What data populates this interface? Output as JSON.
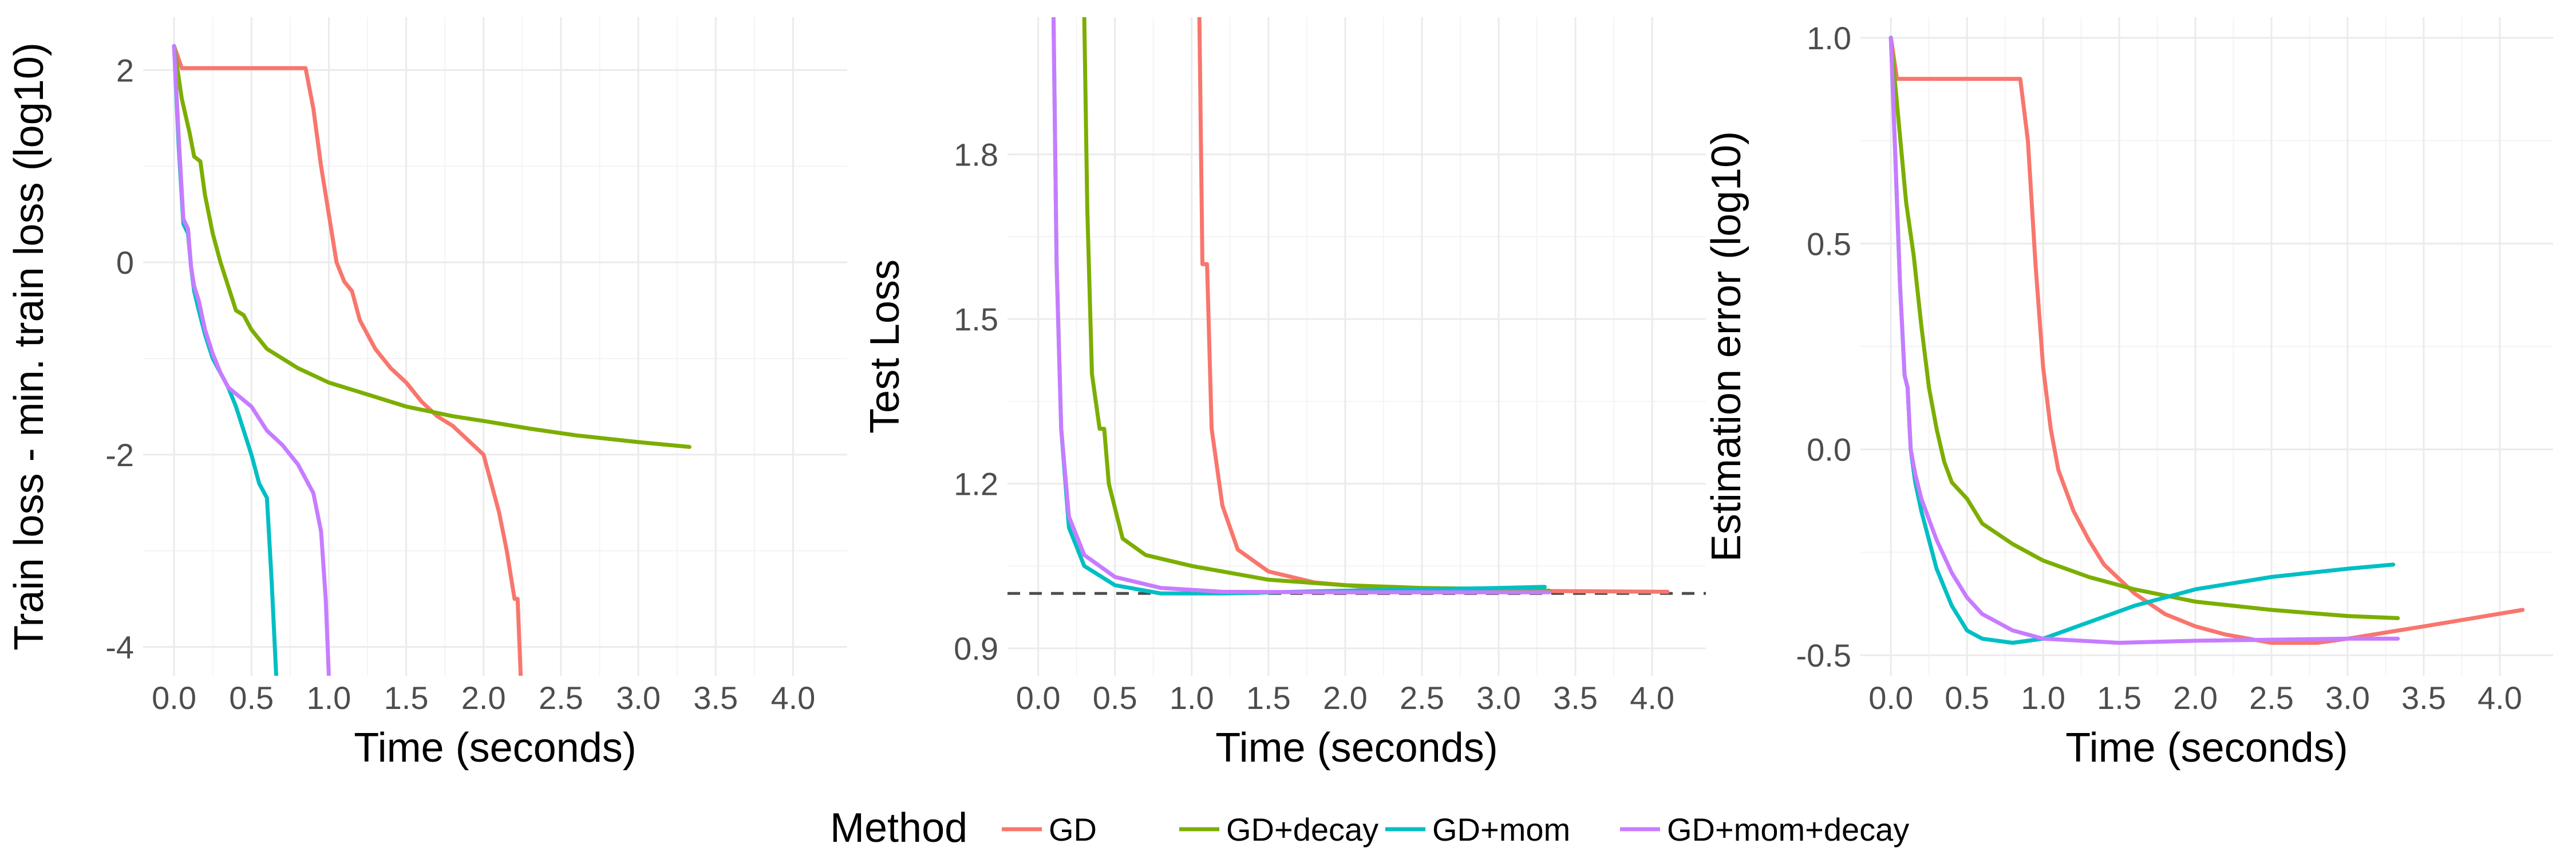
{
  "colors": {
    "GD": "#F8766D",
    "GD+decay": "#7CAE00",
    "GD+mom": "#00BFC4",
    "GD+mom+decay": "#C77CFF"
  },
  "legend": {
    "title": "Method",
    "entries": [
      "GD",
      "GD+decay",
      "GD+mom",
      "GD+mom+decay"
    ]
  },
  "chart_data": [
    {
      "type": "line",
      "xlabel": "Time (seconds)",
      "ylabel": "Train loss - min. train loss (log10)",
      "xlim": [
        -0.2,
        4.35
      ],
      "ylim": [
        -4.3,
        2.55
      ],
      "x_ticks": [
        0.0,
        0.5,
        1.0,
        1.5,
        2.0,
        2.5,
        3.0,
        3.5,
        4.0
      ],
      "x_tick_labels": [
        "0.0",
        "0.5",
        "1.0",
        "1.5",
        "2.0",
        "2.5",
        "3.0",
        "3.5",
        "4.0"
      ],
      "y_ticks": [
        -4,
        -2,
        0,
        2
      ],
      "y_tick_labels": [
        "-4",
        "-2",
        "0",
        "2"
      ],
      "series": [
        {
          "name": "GD",
          "points": [
            [
              0.0,
              2.25
            ],
            [
              0.05,
              2.02
            ],
            [
              0.85,
              2.02
            ],
            [
              0.9,
              1.6
            ],
            [
              0.95,
              1.0
            ],
            [
              1.0,
              0.5
            ],
            [
              1.05,
              0.0
            ],
            [
              1.1,
              -0.2
            ],
            [
              1.15,
              -0.3
            ],
            [
              1.2,
              -0.6
            ],
            [
              1.3,
              -0.9
            ],
            [
              1.4,
              -1.1
            ],
            [
              1.5,
              -1.25
            ],
            [
              1.6,
              -1.45
            ],
            [
              1.7,
              -1.6
            ],
            [
              1.8,
              -1.7
            ],
            [
              1.9,
              -1.85
            ],
            [
              2.0,
              -2.0
            ],
            [
              2.05,
              -2.3
            ],
            [
              2.1,
              -2.6
            ],
            [
              2.15,
              -3.0
            ],
            [
              2.2,
              -3.5
            ],
            [
              2.22,
              -3.5
            ],
            [
              2.24,
              -4.3
            ]
          ]
        },
        {
          "name": "GD+decay",
          "points": [
            [
              0.0,
              2.25
            ],
            [
              0.05,
              1.7
            ],
            [
              0.1,
              1.35
            ],
            [
              0.13,
              1.1
            ],
            [
              0.17,
              1.05
            ],
            [
              0.2,
              0.7
            ],
            [
              0.25,
              0.3
            ],
            [
              0.3,
              0.0
            ],
            [
              0.35,
              -0.25
            ],
            [
              0.4,
              -0.5
            ],
            [
              0.45,
              -0.55
            ],
            [
              0.5,
              -0.7
            ],
            [
              0.6,
              -0.9
            ],
            [
              0.7,
              -1.0
            ],
            [
              0.8,
              -1.1
            ],
            [
              1.0,
              -1.25
            ],
            [
              1.2,
              -1.35
            ],
            [
              1.5,
              -1.5
            ],
            [
              1.8,
              -1.6
            ],
            [
              2.0,
              -1.65
            ],
            [
              2.3,
              -1.73
            ],
            [
              2.6,
              -1.8
            ],
            [
              3.0,
              -1.87
            ],
            [
              3.33,
              -1.92
            ]
          ]
        },
        {
          "name": "GD+mom",
          "points": [
            [
              0.0,
              2.25
            ],
            [
              0.03,
              1.2
            ],
            [
              0.06,
              0.4
            ],
            [
              0.09,
              0.3
            ],
            [
              0.11,
              -0.05
            ],
            [
              0.13,
              -0.3
            ],
            [
              0.16,
              -0.5
            ],
            [
              0.2,
              -0.75
            ],
            [
              0.25,
              -1.0
            ],
            [
              0.3,
              -1.15
            ],
            [
              0.35,
              -1.3
            ],
            [
              0.4,
              -1.5
            ],
            [
              0.45,
              -1.75
            ],
            [
              0.5,
              -2.0
            ],
            [
              0.55,
              -2.3
            ],
            [
              0.6,
              -2.45
            ],
            [
              0.63,
              -3.3
            ],
            [
              0.66,
              -4.3
            ]
          ]
        },
        {
          "name": "GD+mom+decay",
          "points": [
            [
              0.0,
              2.25
            ],
            [
              0.03,
              1.3
            ],
            [
              0.06,
              0.45
            ],
            [
              0.09,
              0.35
            ],
            [
              0.11,
              -0.05
            ],
            [
              0.13,
              -0.25
            ],
            [
              0.16,
              -0.4
            ],
            [
              0.2,
              -0.7
            ],
            [
              0.25,
              -0.95
            ],
            [
              0.3,
              -1.15
            ],
            [
              0.35,
              -1.3
            ],
            [
              0.5,
              -1.5
            ],
            [
              0.6,
              -1.75
            ],
            [
              0.7,
              -1.9
            ],
            [
              0.8,
              -2.1
            ],
            [
              0.9,
              -2.4
            ],
            [
              0.95,
              -2.8
            ],
            [
              0.98,
              -3.5
            ],
            [
              1.0,
              -4.3
            ]
          ]
        }
      ]
    },
    {
      "type": "line",
      "xlabel": "Time (seconds)",
      "ylabel": "Test Loss",
      "xlim": [
        -0.2,
        4.35
      ],
      "ylim": [
        0.85,
        2.05
      ],
      "x_ticks": [
        0.0,
        0.5,
        1.0,
        1.5,
        2.0,
        2.5,
        3.0,
        3.5,
        4.0
      ],
      "x_tick_labels": [
        "0.0",
        "0.5",
        "1.0",
        "1.5",
        "2.0",
        "2.5",
        "3.0",
        "3.5",
        "4.0"
      ],
      "y_ticks": [
        0.9,
        1.2,
        1.5,
        1.8
      ],
      "y_tick_labels": [
        "0.9",
        "1.2",
        "1.5",
        "1.8"
      ],
      "reference_line": 1.0,
      "series": [
        {
          "name": "GD",
          "points": [
            [
              1.05,
              2.05
            ],
            [
              1.07,
              1.6
            ],
            [
              1.1,
              1.6
            ],
            [
              1.13,
              1.3
            ],
            [
              1.2,
              1.16
            ],
            [
              1.3,
              1.08
            ],
            [
              1.5,
              1.04
            ],
            [
              1.8,
              1.02
            ],
            [
              2.2,
              1.01
            ],
            [
              3.0,
              1.005
            ],
            [
              4.1,
              1.003
            ]
          ]
        },
        {
          "name": "GD+decay",
          "points": [
            [
              0.3,
              2.05
            ],
            [
              0.32,
              1.7
            ],
            [
              0.35,
              1.4
            ],
            [
              0.4,
              1.3
            ],
            [
              0.43,
              1.3
            ],
            [
              0.46,
              1.2
            ],
            [
              0.55,
              1.1
            ],
            [
              0.7,
              1.07
            ],
            [
              1.0,
              1.05
            ],
            [
              1.5,
              1.025
            ],
            [
              2.0,
              1.015
            ],
            [
              2.5,
              1.01
            ],
            [
              3.0,
              1.008
            ],
            [
              3.33,
              1.005
            ]
          ]
        },
        {
          "name": "GD+mom",
          "points": [
            [
              0.1,
              2.05
            ],
            [
              0.12,
              1.6
            ],
            [
              0.15,
              1.3
            ],
            [
              0.2,
              1.12
            ],
            [
              0.3,
              1.05
            ],
            [
              0.5,
              1.015
            ],
            [
              0.8,
              1.0
            ],
            [
              1.2,
              1.0
            ],
            [
              2.0,
              1.005
            ],
            [
              3.0,
              1.01
            ],
            [
              3.3,
              1.012
            ]
          ]
        },
        {
          "name": "GD+mom+decay",
          "points": [
            [
              0.1,
              2.05
            ],
            [
              0.12,
              1.6
            ],
            [
              0.15,
              1.3
            ],
            [
              0.2,
              1.14
            ],
            [
              0.3,
              1.07
            ],
            [
              0.5,
              1.03
            ],
            [
              0.8,
              1.01
            ],
            [
              1.2,
              1.003
            ],
            [
              2.0,
              1.002
            ],
            [
              3.0,
              1.002
            ],
            [
              3.33,
              1.002
            ]
          ]
        }
      ]
    },
    {
      "type": "line",
      "xlabel": "Time (seconds)",
      "ylabel": "Estimation error (log10)",
      "xlim": [
        -0.2,
        4.35
      ],
      "ylim": [
        -0.55,
        1.05
      ],
      "x_ticks": [
        0.0,
        0.5,
        1.0,
        1.5,
        2.0,
        2.5,
        3.0,
        3.5,
        4.0
      ],
      "x_tick_labels": [
        "0.0",
        "0.5",
        "1.0",
        "1.5",
        "2.0",
        "2.5",
        "3.0",
        "3.5",
        "4.0"
      ],
      "y_ticks": [
        -0.5,
        0.0,
        0.5,
        1.0
      ],
      "y_tick_labels": [
        "-0.5",
        "0.0",
        "0.5",
        "1.0"
      ],
      "series": [
        {
          "name": "GD",
          "points": [
            [
              0.0,
              1.0
            ],
            [
              0.04,
              0.9
            ],
            [
              0.85,
              0.9
            ],
            [
              0.9,
              0.75
            ],
            [
              0.95,
              0.45
            ],
            [
              1.0,
              0.2
            ],
            [
              1.05,
              0.05
            ],
            [
              1.1,
              -0.05
            ],
            [
              1.2,
              -0.15
            ],
            [
              1.3,
              -0.22
            ],
            [
              1.4,
              -0.28
            ],
            [
              1.6,
              -0.35
            ],
            [
              1.8,
              -0.4
            ],
            [
              2.0,
              -0.43
            ],
            [
              2.2,
              -0.45
            ],
            [
              2.5,
              -0.47
            ],
            [
              2.8,
              -0.47
            ],
            [
              3.0,
              -0.46
            ],
            [
              3.5,
              -0.43
            ],
            [
              4.15,
              -0.39
            ]
          ]
        },
        {
          "name": "GD+decay",
          "points": [
            [
              0.0,
              1.0
            ],
            [
              0.05,
              0.8
            ],
            [
              0.1,
              0.6
            ],
            [
              0.15,
              0.47
            ],
            [
              0.2,
              0.3
            ],
            [
              0.25,
              0.15
            ],
            [
              0.3,
              0.05
            ],
            [
              0.35,
              -0.03
            ],
            [
              0.4,
              -0.08
            ],
            [
              0.5,
              -0.12
            ],
            [
              0.6,
              -0.18
            ],
            [
              0.8,
              -0.23
            ],
            [
              1.0,
              -0.27
            ],
            [
              1.3,
              -0.31
            ],
            [
              1.6,
              -0.34
            ],
            [
              2.0,
              -0.37
            ],
            [
              2.5,
              -0.39
            ],
            [
              3.0,
              -0.405
            ],
            [
              3.33,
              -0.41
            ]
          ]
        },
        {
          "name": "GD+mom",
          "points": [
            [
              0.0,
              1.0
            ],
            [
              0.03,
              0.7
            ],
            [
              0.06,
              0.4
            ],
            [
              0.09,
              0.18
            ],
            [
              0.11,
              0.15
            ],
            [
              0.13,
              0.0
            ],
            [
              0.16,
              -0.08
            ],
            [
              0.2,
              -0.15
            ],
            [
              0.25,
              -0.22
            ],
            [
              0.3,
              -0.29
            ],
            [
              0.4,
              -0.38
            ],
            [
              0.5,
              -0.44
            ],
            [
              0.6,
              -0.46
            ],
            [
              0.8,
              -0.47
            ],
            [
              1.0,
              -0.46
            ],
            [
              1.3,
              -0.42
            ],
            [
              1.6,
              -0.38
            ],
            [
              2.0,
              -0.34
            ],
            [
              2.5,
              -0.31
            ],
            [
              3.0,
              -0.29
            ],
            [
              3.3,
              -0.28
            ]
          ]
        },
        {
          "name": "GD+mom+decay",
          "points": [
            [
              0.0,
              1.0
            ],
            [
              0.03,
              0.7
            ],
            [
              0.06,
              0.4
            ],
            [
              0.09,
              0.18
            ],
            [
              0.11,
              0.15
            ],
            [
              0.13,
              0.0
            ],
            [
              0.16,
              -0.06
            ],
            [
              0.2,
              -0.12
            ],
            [
              0.3,
              -0.22
            ],
            [
              0.4,
              -0.3
            ],
            [
              0.5,
              -0.36
            ],
            [
              0.6,
              -0.4
            ],
            [
              0.8,
              -0.44
            ],
            [
              1.0,
              -0.46
            ],
            [
              1.5,
              -0.47
            ],
            [
              2.0,
              -0.465
            ],
            [
              3.0,
              -0.46
            ],
            [
              3.33,
              -0.46
            ]
          ]
        }
      ]
    }
  ]
}
